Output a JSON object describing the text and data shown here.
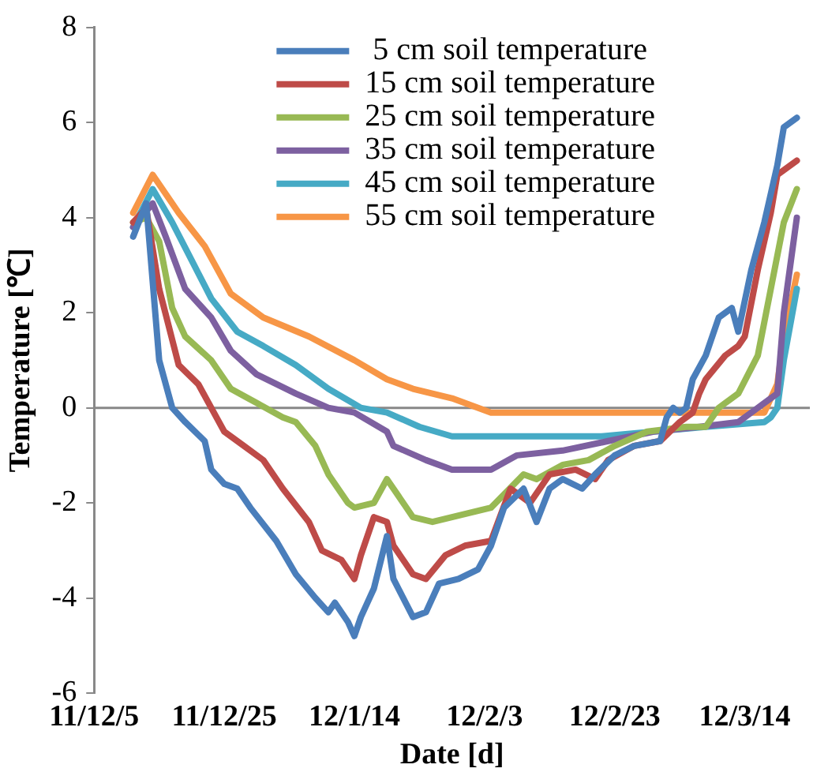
{
  "chart_data": {
    "type": "line",
    "xlabel": "Date [d]",
    "ylabel": "Temperature [℃]",
    "xlim": [
      "2011-12-05",
      "2012-03-24"
    ],
    "xticks": [
      {
        "value": "2011-12-05",
        "label": "11/12/5"
      },
      {
        "value": "2011-12-25",
        "label": "11/12/25"
      },
      {
        "value": "2012-01-14",
        "label": "12/1/14"
      },
      {
        "value": "2012-02-03",
        "label": "12/2/3"
      },
      {
        "value": "2012-02-23",
        "label": "12/2/23"
      },
      {
        "value": "2012-03-14",
        "label": "12/3/14"
      }
    ],
    "ref_lines": [
      {
        "axis": "y",
        "value": 0,
        "color": "#888888"
      }
    ],
    "ylim": [
      -6,
      8
    ],
    "yticks": [
      -6,
      -4,
      -2,
      0,
      2,
      4,
      6,
      8
    ],
    "grid": false,
    "legend": "top right",
    "marker": "none",
    "line_style": "solid",
    "series": [
      {
        "name": " 5 cm soil temperature",
        "color": "#4a7ebb",
        "x": [
          "2011-12-11",
          "2011-12-13",
          "2011-12-15",
          "2011-12-17",
          "2011-12-19",
          "2011-12-22",
          "2011-12-23",
          "2011-12-25",
          "2011-12-27",
          "2011-12-29",
          "2012-01-02",
          "2012-01-05",
          "2012-01-08",
          "2012-01-10",
          "2012-01-11",
          "2012-01-13",
          "2012-01-14",
          "2012-01-15",
          "2012-01-17",
          "2012-01-19",
          "2012-01-20",
          "2012-01-23",
          "2012-01-25",
          "2012-01-27",
          "2012-01-30",
          "2012-02-02",
          "2012-02-04",
          "2012-02-06",
          "2012-02-09",
          "2012-02-11",
          "2012-02-13",
          "2012-02-15",
          "2012-02-18",
          "2012-02-20",
          "2012-02-23",
          "2012-02-26",
          "2012-03-01",
          "2012-03-02",
          "2012-03-03",
          "2012-03-04",
          "2012-03-05",
          "2012-03-06",
          "2012-03-08",
          "2012-03-10",
          "2012-03-12",
          "2012-03-13",
          "2012-03-15",
          "2012-03-17",
          "2012-03-19",
          "2012-03-20",
          "2012-03-22"
        ],
        "values": [
          3.6,
          4.3,
          1.0,
          0,
          -0.3,
          -0.7,
          -1.3,
          -1.6,
          -1.7,
          -2.1,
          -2.8,
          -3.5,
          -4.0,
          -4.3,
          -4.1,
          -4.5,
          -4.8,
          -4.4,
          -3.8,
          -2.7,
          -3.6,
          -4.4,
          -4.3,
          -3.7,
          -3.6,
          -3.4,
          -2.9,
          -2.1,
          -1.7,
          -2.4,
          -1.7,
          -1.5,
          -1.7,
          -1.4,
          -1.0,
          -0.8,
          -0.7,
          -0.2,
          0.0,
          -0.1,
          0,
          0.6,
          1.1,
          1.9,
          2.1,
          1.6,
          2.9,
          3.9,
          5.1,
          5.9,
          6.1
        ]
      },
      {
        "name": "15 cm soil temperature",
        "color": "#be4b48",
        "x": [
          "2011-12-11",
          "2011-12-13",
          "2011-12-15",
          "2011-12-18",
          "2011-12-21",
          "2011-12-23",
          "2011-12-25",
          "2011-12-28",
          "2011-12-31",
          "2012-01-03",
          "2012-01-07",
          "2012-01-09",
          "2012-01-12",
          "2012-01-14",
          "2012-01-15",
          "2012-01-17",
          "2012-01-19",
          "2012-01-20",
          "2012-01-23",
          "2012-01-25",
          "2012-01-28",
          "2012-01-31",
          "2012-02-04",
          "2012-02-07",
          "2012-02-10",
          "2012-02-13",
          "2012-02-17",
          "2012-02-20",
          "2012-02-22",
          "2012-02-26",
          "2012-03-01",
          "2012-03-04",
          "2012-03-06",
          "2012-03-07",
          "2012-03-08",
          "2012-03-11",
          "2012-03-13",
          "2012-03-14",
          "2012-03-16",
          "2012-03-18",
          "2012-03-19",
          "2012-03-22"
        ],
        "values": [
          3.9,
          4.2,
          2.5,
          0.9,
          0.5,
          0,
          -0.5,
          -0.8,
          -1.1,
          -1.7,
          -2.4,
          -3.0,
          -3.2,
          -3.6,
          -3.1,
          -2.3,
          -2.4,
          -2.9,
          -3.5,
          -3.6,
          -3.1,
          -2.9,
          -2.8,
          -1.7,
          -2.0,
          -1.4,
          -1.3,
          -1.5,
          -1.1,
          -0.8,
          -0.7,
          -0.3,
          -0.1,
          0.3,
          0.6,
          1.1,
          1.3,
          1.5,
          2.9,
          4.1,
          4.9,
          5.2
        ]
      },
      {
        "name": "25 cm soil temperature",
        "color": "#98b954",
        "x": [
          "2011-12-11",
          "2011-12-13",
          "2011-12-15",
          "2011-12-17",
          "2011-12-19",
          "2011-12-23",
          "2011-12-26",
          "2011-12-30",
          "2012-01-03",
          "2012-01-05",
          "2012-01-08",
          "2012-01-10",
          "2012-01-13",
          "2012-01-14",
          "2012-01-17",
          "2012-01-19",
          "2012-01-20",
          "2012-01-23",
          "2012-01-26",
          "2012-01-29",
          "2012-02-04",
          "2012-02-09",
          "2012-02-11",
          "2012-02-15",
          "2012-02-19",
          "2012-02-23",
          "2012-02-28",
          "2012-03-05",
          "2012-03-08",
          "2012-03-10",
          "2012-03-13",
          "2012-03-16",
          "2012-03-18",
          "2012-03-20",
          "2012-03-22"
        ],
        "values": [
          3.9,
          4.0,
          3.5,
          2.1,
          1.5,
          1.0,
          0.4,
          0.1,
          -0.2,
          -0.3,
          -0.8,
          -1.4,
          -2.0,
          -2.1,
          -2.0,
          -1.5,
          -1.7,
          -2.3,
          -2.4,
          -2.3,
          -2.1,
          -1.4,
          -1.5,
          -1.2,
          -1.1,
          -0.8,
          -0.5,
          -0.4,
          -0.4,
          0,
          0.3,
          1.1,
          2.5,
          3.9,
          4.6
        ]
      },
      {
        "name": "35 cm soil temperature",
        "color": "#7d60a0",
        "x": [
          "2011-12-11",
          "2011-12-14",
          "2011-12-16",
          "2011-12-19",
          "2011-12-23",
          "2011-12-26",
          "2011-12-30",
          "2012-01-05",
          "2012-01-10",
          "2012-01-14",
          "2012-01-19",
          "2012-01-20",
          "2012-01-25",
          "2012-01-29",
          "2012-02-04",
          "2012-02-08",
          "2012-02-15",
          "2012-02-22",
          "2012-02-29",
          "2012-03-07",
          "2012-03-13",
          "2012-03-16",
          "2012-03-19",
          "2012-03-20",
          "2012-03-22"
        ],
        "values": [
          3.8,
          4.3,
          3.6,
          2.5,
          1.9,
          1.2,
          0.7,
          0.3,
          0,
          -0.1,
          -0.5,
          -0.8,
          -1.1,
          -1.3,
          -1.3,
          -1.0,
          -0.9,
          -0.7,
          -0.5,
          -0.4,
          -0.3,
          0,
          0.3,
          2.0,
          4.0
        ]
      },
      {
        "name": "45 cm soil temperature",
        "color": "#46aac5",
        "x": [
          "2011-12-11",
          "2011-12-14",
          "2011-12-17",
          "2011-12-20",
          "2011-12-23",
          "2011-12-27",
          "2011-12-31",
          "2012-01-05",
          "2012-01-10",
          "2012-01-15",
          "2012-01-19",
          "2012-01-24",
          "2012-01-29",
          "2012-02-12",
          "2012-02-21",
          "2012-02-29",
          "2012-03-08",
          "2012-03-17",
          "2012-03-18",
          "2012-03-19",
          "2012-03-20",
          "2012-03-22"
        ],
        "values": [
          3.8,
          4.6,
          3.9,
          3.1,
          2.3,
          1.6,
          1.3,
          0.9,
          0.4,
          0,
          -0.1,
          -0.4,
          -0.6,
          -0.6,
          -0.6,
          -0.5,
          -0.4,
          -0.3,
          -0.2,
          0,
          1.0,
          2.5
        ]
      },
      {
        "name": "55 cm soil temperature",
        "color": "#f79646",
        "x": [
          "2011-12-11",
          "2011-12-14",
          "2011-12-18",
          "2011-12-22",
          "2011-12-26",
          "2011-12-31",
          "2012-01-07",
          "2012-01-14",
          "2012-01-19",
          "2012-01-23",
          "2012-01-29",
          "2012-02-04",
          "2012-02-21",
          "2012-03-08",
          "2012-03-17",
          "2012-03-19",
          "2012-03-20",
          "2012-03-22"
        ],
        "values": [
          4.1,
          4.9,
          4.1,
          3.4,
          2.4,
          1.9,
          1.5,
          1.0,
          0.6,
          0.4,
          0.2,
          -0.1,
          -0.1,
          -0.1,
          -0.1,
          0.5,
          1.5,
          2.8
        ]
      }
    ]
  }
}
